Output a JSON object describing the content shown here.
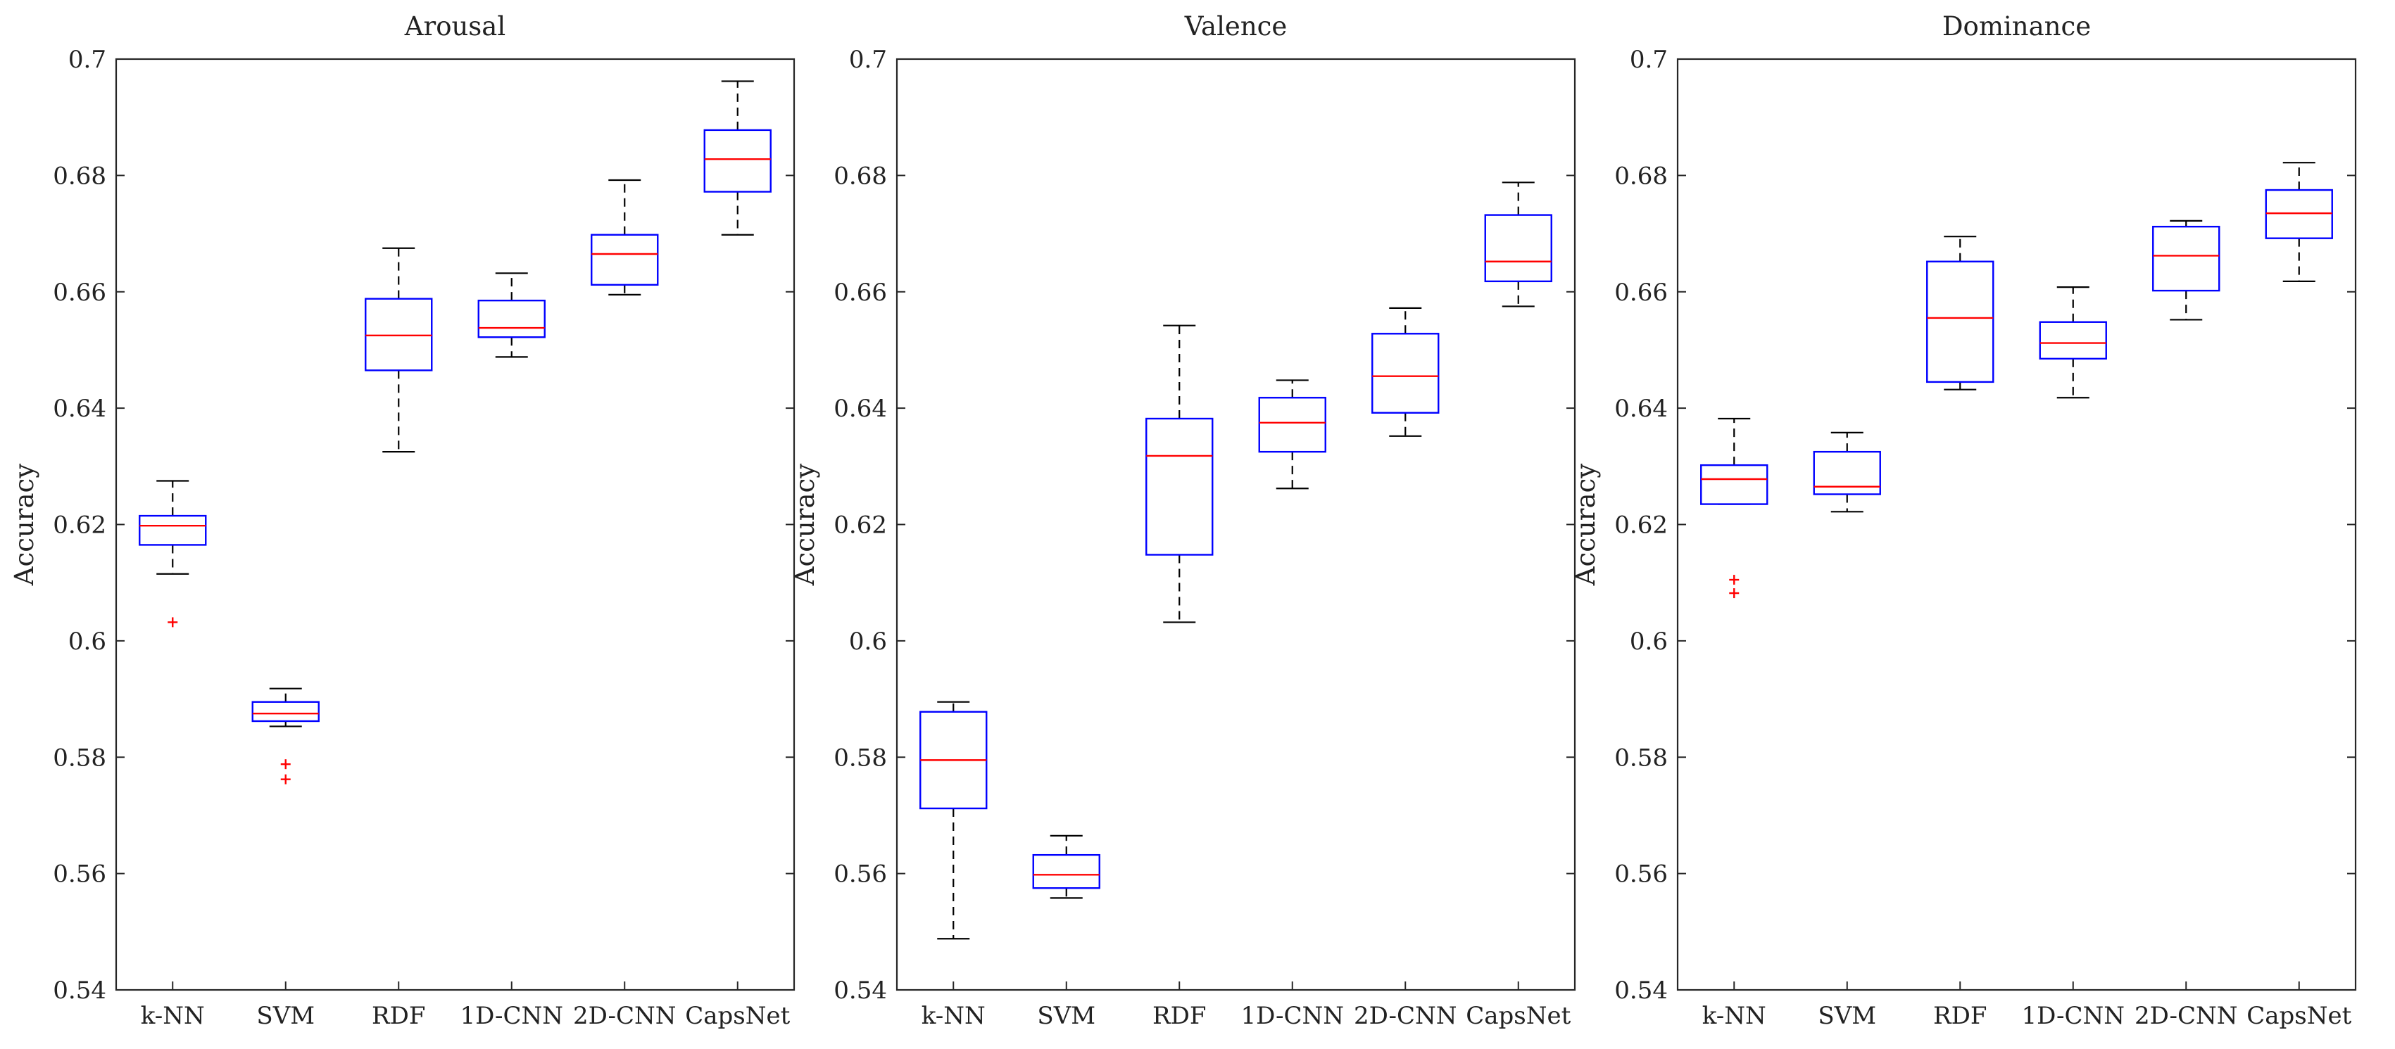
{
  "chart_data": [
    {
      "type": "box",
      "title": "Arousal",
      "xlabel": "",
      "ylabel": "Accuracy",
      "ylim": [
        0.54,
        0.7
      ],
      "yticks": [
        "0.54",
        "0.56",
        "0.58",
        "0.6",
        "0.62",
        "0.64",
        "0.66",
        "0.68",
        "0.7"
      ],
      "categories": [
        "k-NN",
        "SVM",
        "RDF",
        "1D-CNN",
        "2D-CNN",
        "CapsNet"
      ],
      "boxes": [
        {
          "min": 0.6115,
          "q1": 0.6165,
          "median": 0.6198,
          "q3": 0.6215,
          "max": 0.6275,
          "outliers": [
            0.6032
          ]
        },
        {
          "min": 0.5853,
          "q1": 0.5862,
          "median": 0.5875,
          "q3": 0.5895,
          "max": 0.5918,
          "outliers": [
            0.5788,
            0.5762
          ]
        },
        {
          "min": 0.6325,
          "q1": 0.6465,
          "median": 0.6525,
          "q3": 0.6588,
          "max": 0.6675,
          "outliers": []
        },
        {
          "min": 0.6488,
          "q1": 0.6522,
          "median": 0.6538,
          "q3": 0.6585,
          "max": 0.6632,
          "outliers": []
        },
        {
          "min": 0.6595,
          "q1": 0.6612,
          "median": 0.6665,
          "q3": 0.6698,
          "max": 0.6792,
          "outliers": []
        },
        {
          "min": 0.6698,
          "q1": 0.6772,
          "median": 0.6828,
          "q3": 0.6878,
          "max": 0.6962,
          "outliers": []
        }
      ]
    },
    {
      "type": "box",
      "title": "Valence",
      "xlabel": "",
      "ylabel": "Accuracy",
      "ylim": [
        0.54,
        0.7
      ],
      "yticks": [
        "0.54",
        "0.56",
        "0.58",
        "0.6",
        "0.62",
        "0.64",
        "0.66",
        "0.68",
        "0.7"
      ],
      "categories": [
        "k-NN",
        "SVM",
        "RDF",
        "1D-CNN",
        "2D-CNN",
        "CapsNet"
      ],
      "boxes": [
        {
          "min": 0.5488,
          "q1": 0.5712,
          "median": 0.5795,
          "q3": 0.5878,
          "max": 0.5895,
          "outliers": []
        },
        {
          "min": 0.5558,
          "q1": 0.5575,
          "median": 0.5598,
          "q3": 0.5632,
          "max": 0.5665,
          "outliers": []
        },
        {
          "min": 0.6032,
          "q1": 0.6148,
          "median": 0.6318,
          "q3": 0.6382,
          "max": 0.6542,
          "outliers": []
        },
        {
          "min": 0.6262,
          "q1": 0.6325,
          "median": 0.6375,
          "q3": 0.6418,
          "max": 0.6448,
          "outliers": []
        },
        {
          "min": 0.6352,
          "q1": 0.6392,
          "median": 0.6455,
          "q3": 0.6528,
          "max": 0.6572,
          "outliers": []
        },
        {
          "min": 0.6575,
          "q1": 0.6618,
          "median": 0.6652,
          "q3": 0.6732,
          "max": 0.6788,
          "outliers": []
        }
      ]
    },
    {
      "type": "box",
      "title": "Dominance",
      "xlabel": "",
      "ylabel": "Accuracy",
      "ylim": [
        0.54,
        0.7
      ],
      "yticks": [
        "0.54",
        "0.56",
        "0.58",
        "0.6",
        "0.62",
        "0.64",
        "0.66",
        "0.68",
        "0.7"
      ],
      "categories": [
        "k-NN",
        "SVM",
        "RDF",
        "1D-CNN",
        "2D-CNN",
        "CapsNet"
      ],
      "boxes": [
        {
          "min": 0.6235,
          "q1": 0.6235,
          "median": 0.6278,
          "q3": 0.6302,
          "max": 0.6382,
          "outliers": [
            0.6105,
            0.6082
          ]
        },
        {
          "min": 0.6222,
          "q1": 0.6252,
          "median": 0.6265,
          "q3": 0.6325,
          "max": 0.6358,
          "outliers": []
        },
        {
          "min": 0.6432,
          "q1": 0.6445,
          "median": 0.6555,
          "q3": 0.6652,
          "max": 0.6695,
          "outliers": []
        },
        {
          "min": 0.6418,
          "q1": 0.6485,
          "median": 0.6512,
          "q3": 0.6548,
          "max": 0.6608,
          "outliers": []
        },
        {
          "min": 0.6552,
          "q1": 0.6602,
          "median": 0.6662,
          "q3": 0.6712,
          "max": 0.6722,
          "outliers": []
        },
        {
          "min": 0.6618,
          "q1": 0.6692,
          "median": 0.6735,
          "q3": 0.6775,
          "max": 0.6822,
          "outliers": []
        }
      ]
    }
  ]
}
